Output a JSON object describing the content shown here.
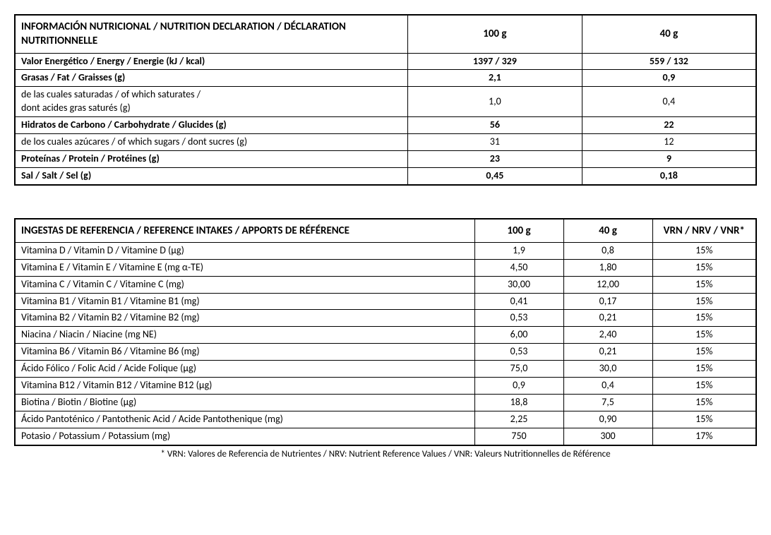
{
  "nutrition": {
    "header_label": "INFORMACIÓN NUTRICIONAL / NUTRITION DECLARATION / DÉCLARATION NUTRITIONNELLE",
    "col_100g": "100 g",
    "col_40g": "40 g",
    "rows": [
      {
        "label": "Valor Energético / Energy / Energie (kJ / kcal)",
        "v100": "1397 / 329",
        "v40": "559 / 132",
        "bold": true
      },
      {
        "label": "Grasas / Fat / Graisses (g)",
        "v100": "2,1",
        "v40": "0,9",
        "bold": true
      },
      {
        "label": "de las cuales saturadas / of which saturates /\ndont acides gras saturés (g)",
        "v100": "1,0",
        "v40": "0,4",
        "bold": false
      },
      {
        "label": "Hidratos de Carbono / Carbohydrate / Glucides (g)",
        "v100": "56",
        "v40": "22",
        "bold": true
      },
      {
        "label": "de los cuales azúcares / of which sugars / dont sucres (g)",
        "v100": "31",
        "v40": "12",
        "bold": false
      },
      {
        "label": "Proteínas / Protein / Protéines (g)",
        "v100": "23",
        "v40": "9",
        "bold": true
      },
      {
        "label": "Sal / Salt / Sel (g)",
        "v100": "0,45",
        "v40": "0,18",
        "bold": true
      }
    ]
  },
  "reference": {
    "header_label": "INGESTAS DE REFERENCIA / REFERENCE INTAKES / APPORTS DE RÉFÉRENCE",
    "col_100g": "100 g",
    "col_40g": "40 g",
    "col_nrv": "VRN / NRV / VNR*",
    "rows": [
      {
        "label": "Vitamina D / Vitamin D / Vitamine D (µg)",
        "v100": "1,9",
        "v40": "0,8",
        "nrv": "15%"
      },
      {
        "label": "Vitamina E / Vitamin E / Vitamine E (mg α-TE)",
        "v100": "4,50",
        "v40": "1,80",
        "nrv": "15%"
      },
      {
        "label": "Vitamina C / Vitamin C / Vitamine C (mg)",
        "v100": "30,00",
        "v40": "12,00",
        "nrv": "15%"
      },
      {
        "label": "Vitamina B1 / Vitamin B1 / Vitamine B1 (mg)",
        "v100": "0,41",
        "v40": "0,17",
        "nrv": "15%"
      },
      {
        "label": "Vitamina B2 / Vitamin B2 / Vitamine B2 (mg)",
        "v100": "0,53",
        "v40": "0,21",
        "nrv": "15%"
      },
      {
        "label": "Niacina / Niacin / Niacine (mg NE)",
        "v100": "6,00",
        "v40": "2,40",
        "nrv": "15%"
      },
      {
        "label": "Vitamina B6 / Vitamin B6 / Vitamine B6 (mg)",
        "v100": "0,53",
        "v40": "0,21",
        "nrv": "15%"
      },
      {
        "label": "Ácido Fólico / Folic Acid / Acide Folique (µg)",
        "v100": "75,0",
        "v40": "30,0",
        "nrv": "15%"
      },
      {
        "label": "Vitamina B12 / Vitamin B12 / Vitamine B12 (µg)",
        "v100": "0,9",
        "v40": "0,4",
        "nrv": "15%"
      },
      {
        "label": "Biotina / Biotin / Biotine (µg)",
        "v100": "18,8",
        "v40": "7,5",
        "nrv": "15%"
      },
      {
        "label": "Ácido Pantoténico / Pantothenic Acid / Acide Pantothenique (mg)",
        "v100": "2,25",
        "v40": "0,90",
        "nrv": "15%"
      },
      {
        "label": "Potasio / Potassium / Potassium (mg)",
        "v100": "750",
        "v40": "300",
        "nrv": "17%"
      }
    ],
    "footnote": "* VRN: Valores de Referencia de Nutrientes / NRV: Nutrient Reference Values / VNR: Valeurs Nutritionnelles de Référence"
  },
  "layout": {
    "nutrition_col_widths": [
      "53%",
      "23.5%",
      "23.5%"
    ],
    "reference_col_widths": [
      "62%",
      "12%",
      "12%",
      "14%"
    ]
  }
}
